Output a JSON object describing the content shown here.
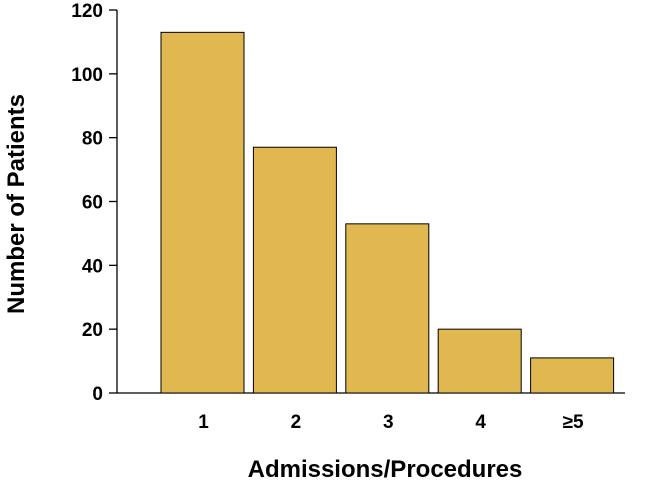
{
  "chart_data": {
    "type": "bar",
    "title": "",
    "xlabel": "Admissions/Procedures",
    "ylabel": "Number of Patients",
    "categories": [
      "1",
      "2",
      "3",
      "4",
      "≥5"
    ],
    "values": [
      113,
      77,
      53,
      20,
      11
    ],
    "ylim": [
      0,
      120
    ],
    "yticks": [
      "0",
      "20",
      "40",
      "60",
      "80",
      "100",
      "120"
    ],
    "grid": false,
    "legend": "none",
    "colors": {
      "bar_fill": "#e0b84f",
      "bar_stroke": "#000000"
    }
  }
}
